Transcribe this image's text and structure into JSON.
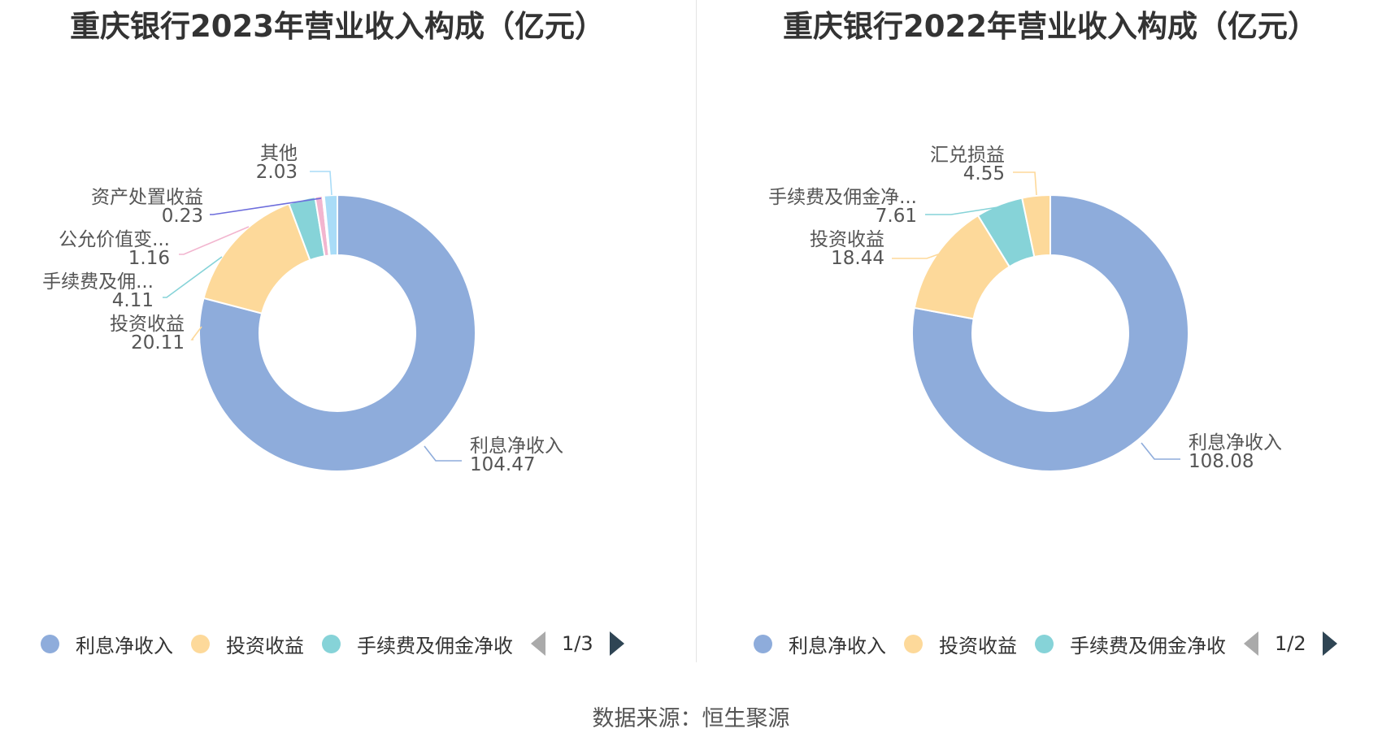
{
  "colors": {
    "利息净收入": "#8eacdb",
    "投资收益": "#fdd99a",
    "手续费及佣金净收入": "#86d3d8",
    "公允价值变动收益": "#f2b5cf",
    "资产处置收益": "#6d6ddc",
    "其他": "#a9dcf7",
    "汇兑损益": "#fdd99a"
  },
  "source": "数据来源：恒生聚源",
  "chart_data": [
    {
      "type": "pie",
      "title": "重庆银行2023年营业收入构成（亿元）",
      "series": [
        {
          "name": "利息净收入",
          "label": "利息净收入",
          "value": 104.47,
          "value_label": "104.47"
        },
        {
          "name": "投资收益",
          "label": "投资收益",
          "value": 20.11,
          "value_label": "20.11"
        },
        {
          "name": "手续费及佣金净收入",
          "label": "手续费及佣...",
          "value": 4.11,
          "value_label": "4.11"
        },
        {
          "name": "公允价值变动收益",
          "label": "公允价值变...",
          "value": 1.16,
          "value_label": "1.16"
        },
        {
          "name": "资产处置收益",
          "label": "资产处置收益",
          "value": 0.23,
          "value_label": "0.23"
        },
        {
          "name": "其他",
          "label": "其他",
          "value": 2.03,
          "value_label": "2.03"
        }
      ],
      "legend": {
        "items": [
          "利息净收入",
          "投资收益",
          "手续费及佣金净收"
        ],
        "page": "1/3"
      }
    },
    {
      "type": "pie",
      "title": "重庆银行2022年营业收入构成（亿元）",
      "series": [
        {
          "name": "利息净收入",
          "label": "利息净收入",
          "value": 108.08,
          "value_label": "108.08"
        },
        {
          "name": "投资收益",
          "label": "投资收益",
          "value": 18.44,
          "value_label": "18.44"
        },
        {
          "name": "手续费及佣金净收入",
          "label": "手续费及佣金净...",
          "value": 7.61,
          "value_label": "7.61"
        },
        {
          "name": "汇兑损益",
          "label": "汇兑损益",
          "value": 4.55,
          "value_label": "4.55"
        }
      ],
      "legend": {
        "items": [
          "利息净收入",
          "投资收益",
          "手续费及佣金净收"
        ],
        "page": "1/2"
      }
    }
  ]
}
